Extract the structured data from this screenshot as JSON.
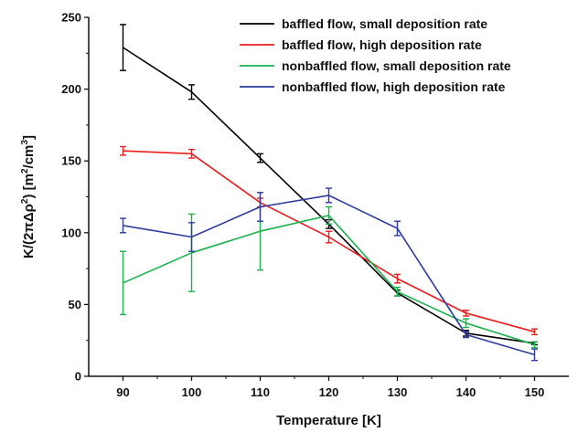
{
  "chart_data": {
    "type": "line",
    "xlabel": "Temperature [K]",
    "ylabel": "K/(2πΔρ²) [m²/cm³]",
    "ylabel_parts": {
      "p1": "K/(2π",
      "p2": "Δρ",
      "p3": "2",
      "p4": ") [m",
      "p5": "2",
      "p6": "/cm",
      "p7": "3",
      "p8": "]"
    },
    "xlim": [
      85,
      155
    ],
    "ylim": [
      0,
      250
    ],
    "x_ticks": [
      90,
      100,
      110,
      120,
      130,
      140,
      150
    ],
    "y_ticks": [
      0,
      50,
      100,
      150,
      200,
      250
    ],
    "grid": false,
    "legend_position": "top-right",
    "series": [
      {
        "name": "baffled flow, small deposition rate",
        "color": "#000000",
        "points": [
          {
            "x": 90,
            "y": 229,
            "err": 16
          },
          {
            "x": 100,
            "y": 198,
            "err": 5
          },
          {
            "x": 110,
            "y": 152,
            "err": 3
          },
          {
            "x": 120,
            "y": 106,
            "err": 3
          },
          {
            "x": 130,
            "y": 58,
            "err": 2
          },
          {
            "x": 140,
            "y": 30,
            "err": 2
          },
          {
            "x": 150,
            "y": 23,
            "err": 1
          }
        ]
      },
      {
        "name": "baffled flow, high deposition rate",
        "color": "#ee1c1c",
        "points": [
          {
            "x": 90,
            "y": 157,
            "err": 3
          },
          {
            "x": 100,
            "y": 155,
            "err": 3
          },
          {
            "x": 110,
            "y": 121,
            "err": 3
          },
          {
            "x": 120,
            "y": 97,
            "err": 4
          },
          {
            "x": 130,
            "y": 68,
            "err": 3
          },
          {
            "x": 140,
            "y": 44,
            "err": 2
          },
          {
            "x": 150,
            "y": 31,
            "err": 2
          }
        ]
      },
      {
        "name": "nonbaffled flow, small deposition rate",
        "color": "#19b24b",
        "points": [
          {
            "x": 90,
            "y": 65,
            "err": 22
          },
          {
            "x": 100,
            "y": 86,
            "err": 27
          },
          {
            "x": 110,
            "y": 101,
            "err": 27
          },
          {
            "x": 120,
            "y": 112,
            "err": 6
          },
          {
            "x": 130,
            "y": 59,
            "err": 3
          },
          {
            "x": 140,
            "y": 37,
            "err": 3
          },
          {
            "x": 150,
            "y": 22,
            "err": 2
          }
        ]
      },
      {
        "name": "nonbaffled flow, high deposition rate",
        "color": "#2e3d9e",
        "points": [
          {
            "x": 90,
            "y": 105,
            "err": 5
          },
          {
            "x": 100,
            "y": 97,
            "err": 10
          },
          {
            "x": 110,
            "y": 118,
            "err": 10
          },
          {
            "x": 120,
            "y": 126,
            "err": 5
          },
          {
            "x": 130,
            "y": 103,
            "err": 5
          },
          {
            "x": 140,
            "y": 29,
            "err": 2
          },
          {
            "x": 150,
            "y": 15,
            "err": 4
          }
        ]
      }
    ]
  }
}
